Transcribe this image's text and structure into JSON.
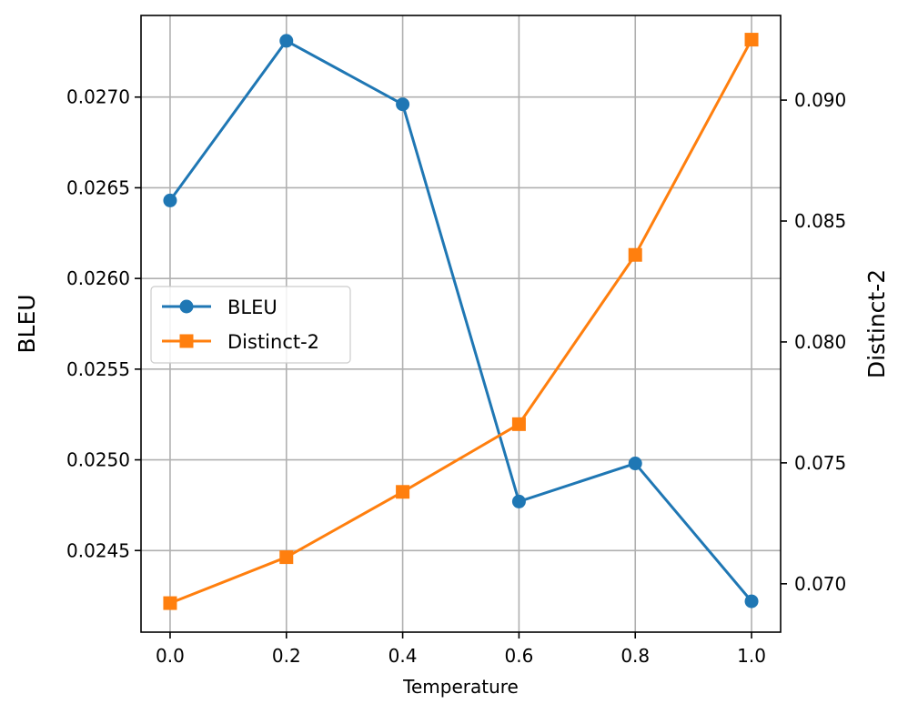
{
  "chart_data": {
    "type": "line",
    "xlabel": "Temperature",
    "ylabel_left": "BLEU",
    "ylabel_right": "Distinct-2",
    "x": [
      0.0,
      0.2,
      0.4,
      0.6,
      0.8,
      1.0
    ],
    "x_ticks": [
      "0.0",
      "0.2",
      "0.4",
      "0.6",
      "0.8",
      "1.0"
    ],
    "xlim": [
      -0.05,
      1.05
    ],
    "ylim_left": [
      0.02405,
      0.02745
    ],
    "ylim_right": [
      0.068,
      0.0935
    ],
    "y_ticks_left": [
      "0.0245",
      "0.0250",
      "0.0255",
      "0.0260",
      "0.0265",
      "0.0270"
    ],
    "y_ticks_right": [
      "0.070",
      "0.075",
      "0.080",
      "0.085",
      "0.090"
    ],
    "grid": true,
    "legend_position": "center-left",
    "series": [
      {
        "name": "BLEU",
        "axis": "left",
        "marker": "circle",
        "color": "#1f77b4",
        "values": [
          0.02643,
          0.02731,
          0.02696,
          0.02477,
          0.02498,
          0.02422
        ]
      },
      {
        "name": "Distinct-2",
        "axis": "right",
        "marker": "square",
        "color": "#ff7f0e",
        "values": [
          0.0692,
          0.0711,
          0.0738,
          0.0766,
          0.0836,
          0.0925
        ]
      }
    ]
  }
}
